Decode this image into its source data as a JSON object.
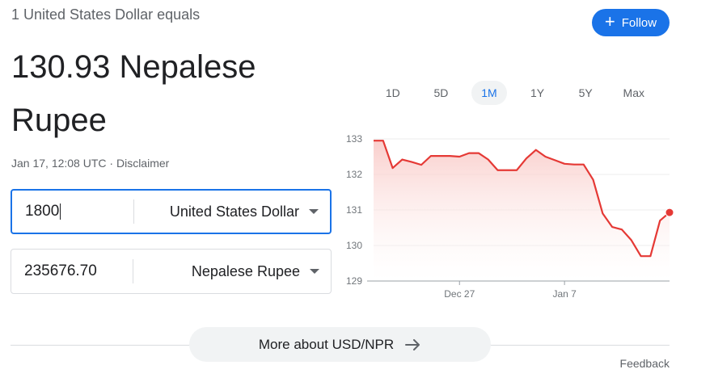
{
  "converter": {
    "equals_label": "1 United States Dollar equals",
    "rate_value": "130.93 Nepalese Rupee",
    "timestamp": "Jan 17, 12:08 UTC",
    "separator": " · ",
    "disclaimer": "Disclaimer",
    "from": {
      "amount": "1800",
      "currency": "United States Dollar"
    },
    "to": {
      "amount": "235676.70",
      "currency": "Nepalese Rupee"
    }
  },
  "follow": {
    "label": "Follow",
    "icon": "plus-icon"
  },
  "range_tabs": [
    "1D",
    "5D",
    "1M",
    "1Y",
    "5Y",
    "Max"
  ],
  "selected_range": "1M",
  "more_button": {
    "label": "More about USD/NPR",
    "icon": "arrow-right-icon"
  },
  "feedback": "Feedback",
  "colors": {
    "accent": "#1a73e8",
    "line": "#e53935",
    "fill_top": "#f9c9c6"
  },
  "chart_data": {
    "type": "area",
    "title": "",
    "xlabel": "",
    "ylabel": "",
    "ylim": [
      129,
      133
    ],
    "yticks": [
      129,
      130,
      131,
      132,
      133
    ],
    "xtick_labels": [
      {
        "label": "Dec 27",
        "index": 9
      },
      {
        "label": "Jan 7",
        "index": 20
      }
    ],
    "grid": true,
    "series": [
      {
        "values": [
          132.95,
          132.95,
          132.18,
          132.42,
          132.35,
          132.27,
          132.52,
          132.52,
          132.52,
          132.5,
          132.6,
          132.6,
          132.42,
          132.12,
          132.12,
          132.12,
          132.45,
          132.69,
          132.5,
          132.4,
          132.3,
          132.28,
          132.28,
          131.85,
          130.9,
          130.52,
          130.45,
          130.15,
          129.7,
          129.7,
          130.7,
          130.93
        ]
      }
    ]
  }
}
